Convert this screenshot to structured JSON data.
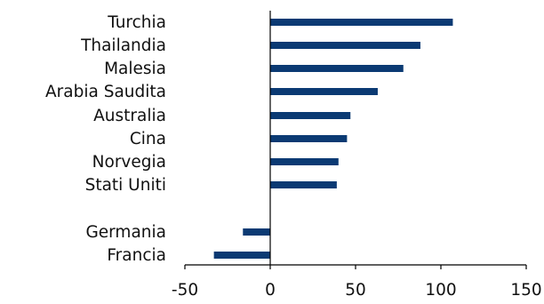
{
  "chart_data": {
    "type": "bar",
    "orientation": "horizontal",
    "categories": [
      "Turchia",
      "Thailandia",
      "Malesia",
      "Arabia Saudita",
      "Australia",
      "Cina",
      "Norvegia",
      "Stati Uniti",
      "Germania",
      "Francia"
    ],
    "values": [
      107,
      88,
      78,
      63,
      47,
      45,
      40,
      39,
      -16,
      -33
    ],
    "xlim": [
      -50,
      150
    ],
    "xticks": [
      "-50",
      "0",
      "50",
      "100",
      "150"
    ],
    "bar_color": "#0b3a73",
    "grid": false,
    "legend": "none"
  }
}
